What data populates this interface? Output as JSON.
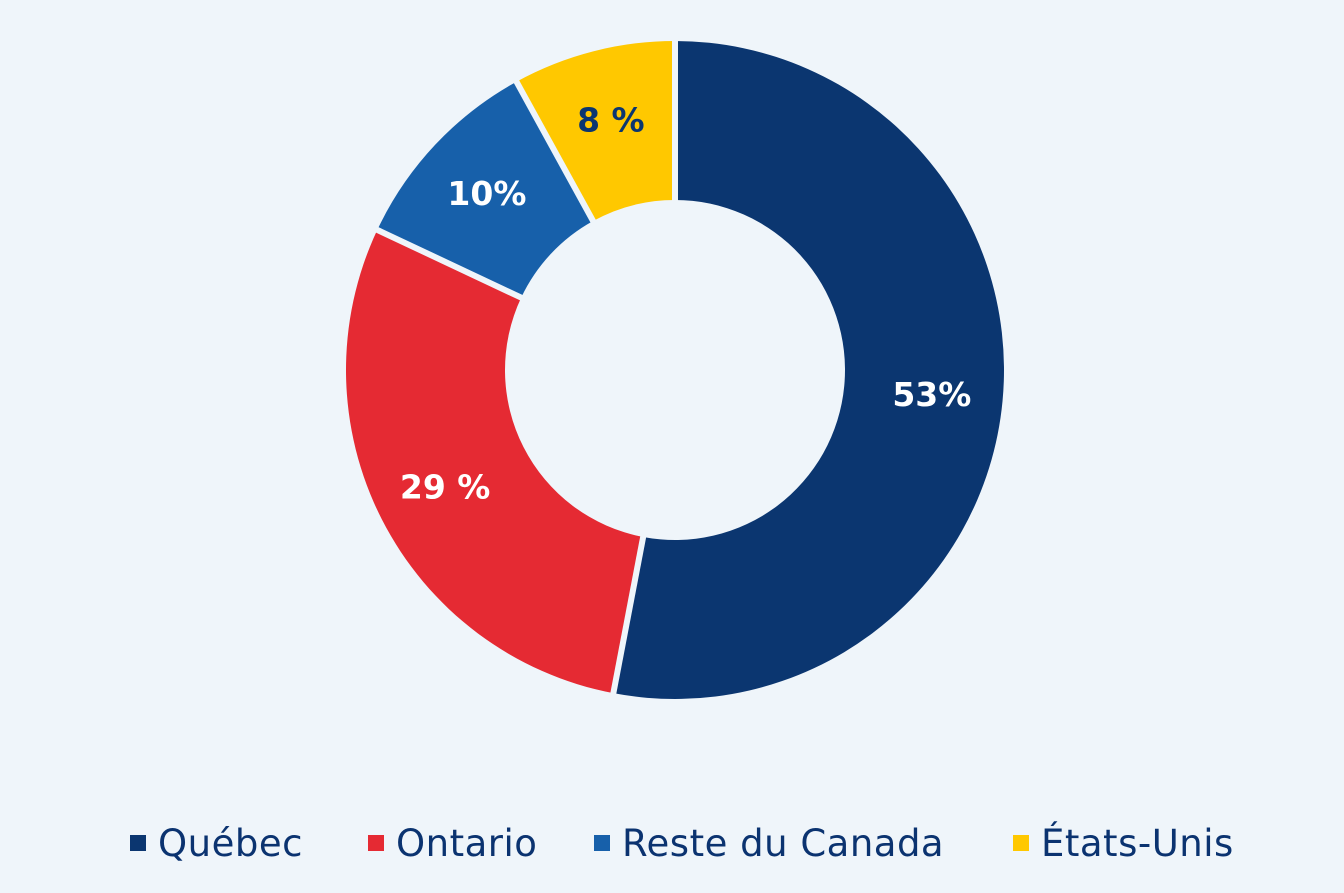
{
  "chart_data": {
    "type": "pie",
    "variant": "donut",
    "title": "",
    "categories": [
      "Québec",
      "Ontario",
      "Reste du Canada",
      "États-Unis"
    ],
    "values": [
      53,
      29,
      10,
      8
    ],
    "data_labels": [
      "53%",
      "29 %",
      "10%",
      "8 %"
    ],
    "colors": [
      "#0b3670",
      "#e52a33",
      "#1760aa",
      "#ffc800"
    ],
    "label_colors": [
      "#ffffff",
      "#ffffff",
      "#ffffff",
      "#0b3670"
    ],
    "start": "12 o'clock",
    "direction": "clockwise",
    "legend": {
      "position": "bottom",
      "entries": [
        "Québec",
        "Ontario",
        "Reste du Canada",
        "États-Unis"
      ]
    }
  }
}
